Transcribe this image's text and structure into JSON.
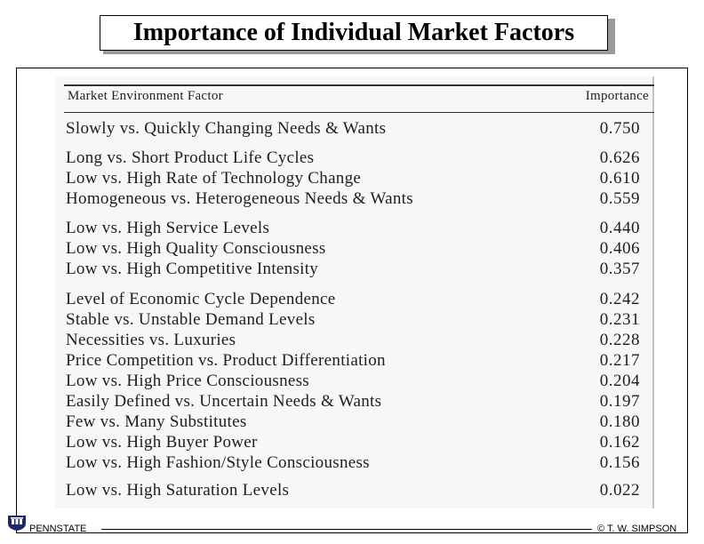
{
  "title": "Importance of Individual Market Factors",
  "table": {
    "header_factor": "Market Environment Factor",
    "header_importance": "Importance",
    "rows": [
      {
        "factor": "Slowly vs. Quickly Changing Needs & Wants",
        "importance": "0.750"
      },
      {
        "factor": "Long vs. Short Product Life Cycles",
        "importance": "0.626"
      },
      {
        "factor": "Low vs. High Rate of Technology Change",
        "importance": "0.610"
      },
      {
        "factor": "Homogeneous vs. Heterogeneous Needs & Wants",
        "importance": "0.559"
      },
      {
        "factor": "Low vs. High Service Levels",
        "importance": "0.440"
      },
      {
        "factor": "Low vs. High Quality Consciousness",
        "importance": "0.406"
      },
      {
        "factor": "Low vs. High Competitive Intensity",
        "importance": "0.357"
      },
      {
        "factor": "Level of Economic Cycle Dependence",
        "importance": "0.242"
      },
      {
        "factor": "Stable vs. Unstable Demand Levels",
        "importance": "0.231"
      },
      {
        "factor": "Necessities vs. Luxuries",
        "importance": "0.228"
      },
      {
        "factor": "Price Competition vs. Product Differentiation",
        "importance": "0.217"
      },
      {
        "factor": "Low vs. High Price Consciousness",
        "importance": "0.204"
      },
      {
        "factor": "Easily Defined vs. Uncertain Needs & Wants",
        "importance": "0.197"
      },
      {
        "factor": "Few vs. Many Substitutes",
        "importance": "0.180"
      },
      {
        "factor": "Low vs. High Buyer Power",
        "importance": "0.162"
      },
      {
        "factor": "Low vs. High Fashion/Style Consciousness",
        "importance": "0.156"
      },
      {
        "factor": "Low vs. High Saturation Levels",
        "importance": "0.022"
      }
    ]
  },
  "footer": {
    "institution": "PENNSTATE",
    "copyright": "© T. W. SIMPSON"
  },
  "colors": {
    "text": "#000000",
    "scan_background": "#f7f7f5",
    "title_shadow": "#9a9a9a"
  }
}
